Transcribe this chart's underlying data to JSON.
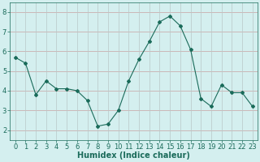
{
  "x": [
    0,
    1,
    2,
    3,
    4,
    5,
    6,
    7,
    8,
    9,
    10,
    11,
    12,
    13,
    14,
    15,
    16,
    17,
    18,
    19,
    20,
    21,
    22,
    23
  ],
  "y": [
    5.7,
    5.4,
    3.8,
    4.5,
    4.1,
    4.1,
    4.0,
    3.5,
    2.2,
    2.3,
    3.0,
    4.5,
    5.6,
    6.5,
    7.5,
    7.8,
    7.3,
    6.1,
    3.6,
    3.2,
    4.3,
    3.9,
    3.9,
    3.2
  ],
  "line_color": "#1a6b5a",
  "marker": "D",
  "marker_size": 2.0,
  "bg_color": "#d4efef",
  "grid_color_h": "#c8a0a0",
  "grid_color_v": "#b8c8c8",
  "xlabel": "Humidex (Indice chaleur)",
  "ylim": [
    1.5,
    8.5
  ],
  "xlim": [
    -0.5,
    23.5
  ],
  "yticks": [
    2,
    3,
    4,
    5,
    6,
    7,
    8
  ],
  "xticks": [
    0,
    1,
    2,
    3,
    4,
    5,
    6,
    7,
    8,
    9,
    10,
    11,
    12,
    13,
    14,
    15,
    16,
    17,
    18,
    19,
    20,
    21,
    22,
    23
  ],
  "tick_color": "#1a6b5a",
  "label_color": "#1a6b5a",
  "xlabel_fontsize": 7,
  "tick_fontsize": 6,
  "linewidth": 0.8
}
